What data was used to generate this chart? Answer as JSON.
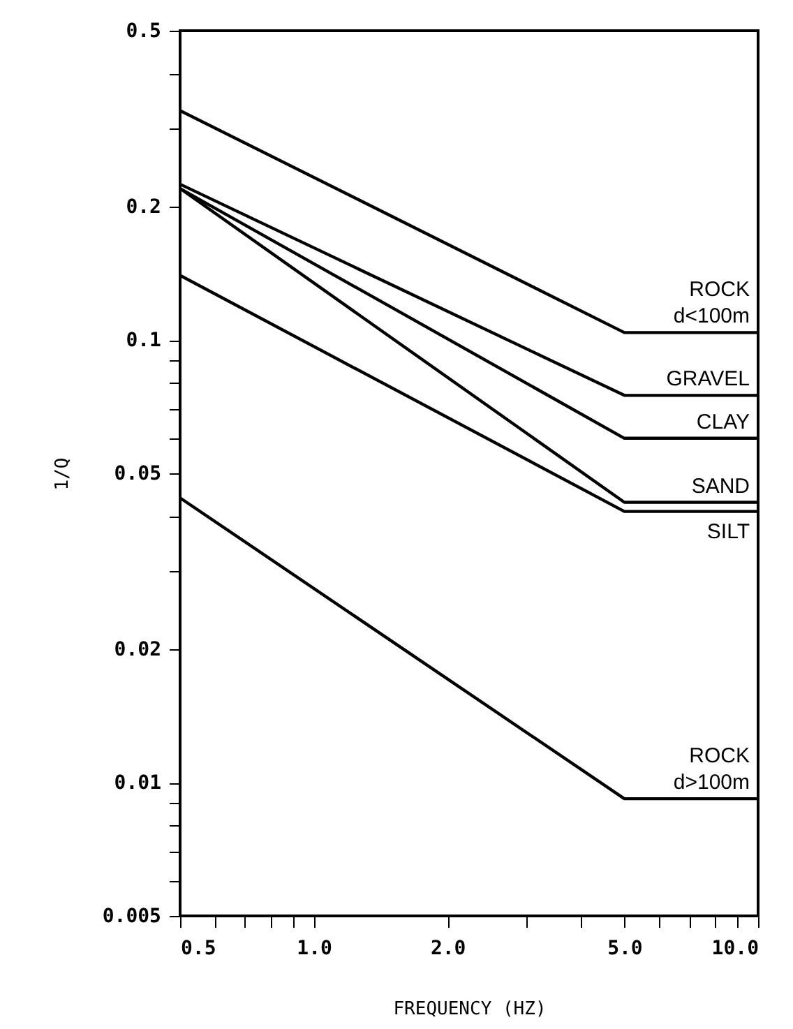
{
  "chart_data": {
    "type": "line",
    "xlabel": "FREQUENCY (HZ)",
    "ylabel": "1/Q",
    "log": "xy",
    "grid": false,
    "legend": false,
    "marker": "none",
    "line_style": "solid",
    "xlim": [
      0.5,
      10.0
    ],
    "ylim": [
      0.005,
      0.5
    ],
    "xticks": [
      {
        "value": 0.5,
        "label": "0.5"
      },
      {
        "value": 0.6,
        "label": null
      },
      {
        "value": 0.7,
        "label": null
      },
      {
        "value": 0.8,
        "label": null
      },
      {
        "value": 0.9,
        "label": null
      },
      {
        "value": 1.0,
        "label": "1.0"
      },
      {
        "value": 2.0,
        "label": "2.0"
      },
      {
        "value": 3.0,
        "label": null
      },
      {
        "value": 4.0,
        "label": null
      },
      {
        "value": 5.0,
        "label": "5.0"
      },
      {
        "value": 6.0,
        "label": null
      },
      {
        "value": 7.0,
        "label": null
      },
      {
        "value": 8.0,
        "label": null
      },
      {
        "value": 9.0,
        "label": null
      },
      {
        "value": 10.0,
        "label": "10.0"
      }
    ],
    "yticks": [
      0.005,
      {
        "value": 0.006,
        "label": null
      },
      {
        "value": 0.007,
        "label": null
      },
      {
        "value": 0.008,
        "label": null
      },
      {
        "value": 0.009,
        "label": null
      },
      0.01,
      0.02,
      {
        "value": 0.03,
        "label": null
      },
      {
        "value": 0.04,
        "label": null
      },
      0.05,
      {
        "value": 0.06,
        "label": null
      },
      {
        "value": 0.07,
        "label": null
      },
      {
        "value": 0.08,
        "label": null
      },
      {
        "value": 0.09,
        "label": null
      },
      0.1,
      0.2,
      {
        "value": 0.3,
        "label": null
      },
      {
        "value": 0.4,
        "label": null
      },
      0.5
    ],
    "x": [
      0.5,
      5.0,
      10.0
    ],
    "series": [
      {
        "name": "ROCK d<100m",
        "color": "#000000",
        "values": [
          0.33,
          0.104,
          0.104
        ]
      },
      {
        "name": "GRAVEL",
        "color": "#000000",
        "values": [
          0.225,
          0.075,
          0.075
        ]
      },
      {
        "name": "CLAY",
        "color": "#000000",
        "values": [
          0.22,
          0.06,
          0.06
        ]
      },
      {
        "name": "SAND",
        "color": "#000000",
        "values": [
          0.22,
          0.043,
          0.043
        ]
      },
      {
        "name": "SILT",
        "color": "#000000",
        "values": [
          0.14,
          0.041,
          0.041
        ]
      },
      {
        "name": "ROCK d>100m",
        "color": "#000000",
        "values": [
          0.044,
          0.0092,
          0.0092
        ]
      }
    ]
  }
}
